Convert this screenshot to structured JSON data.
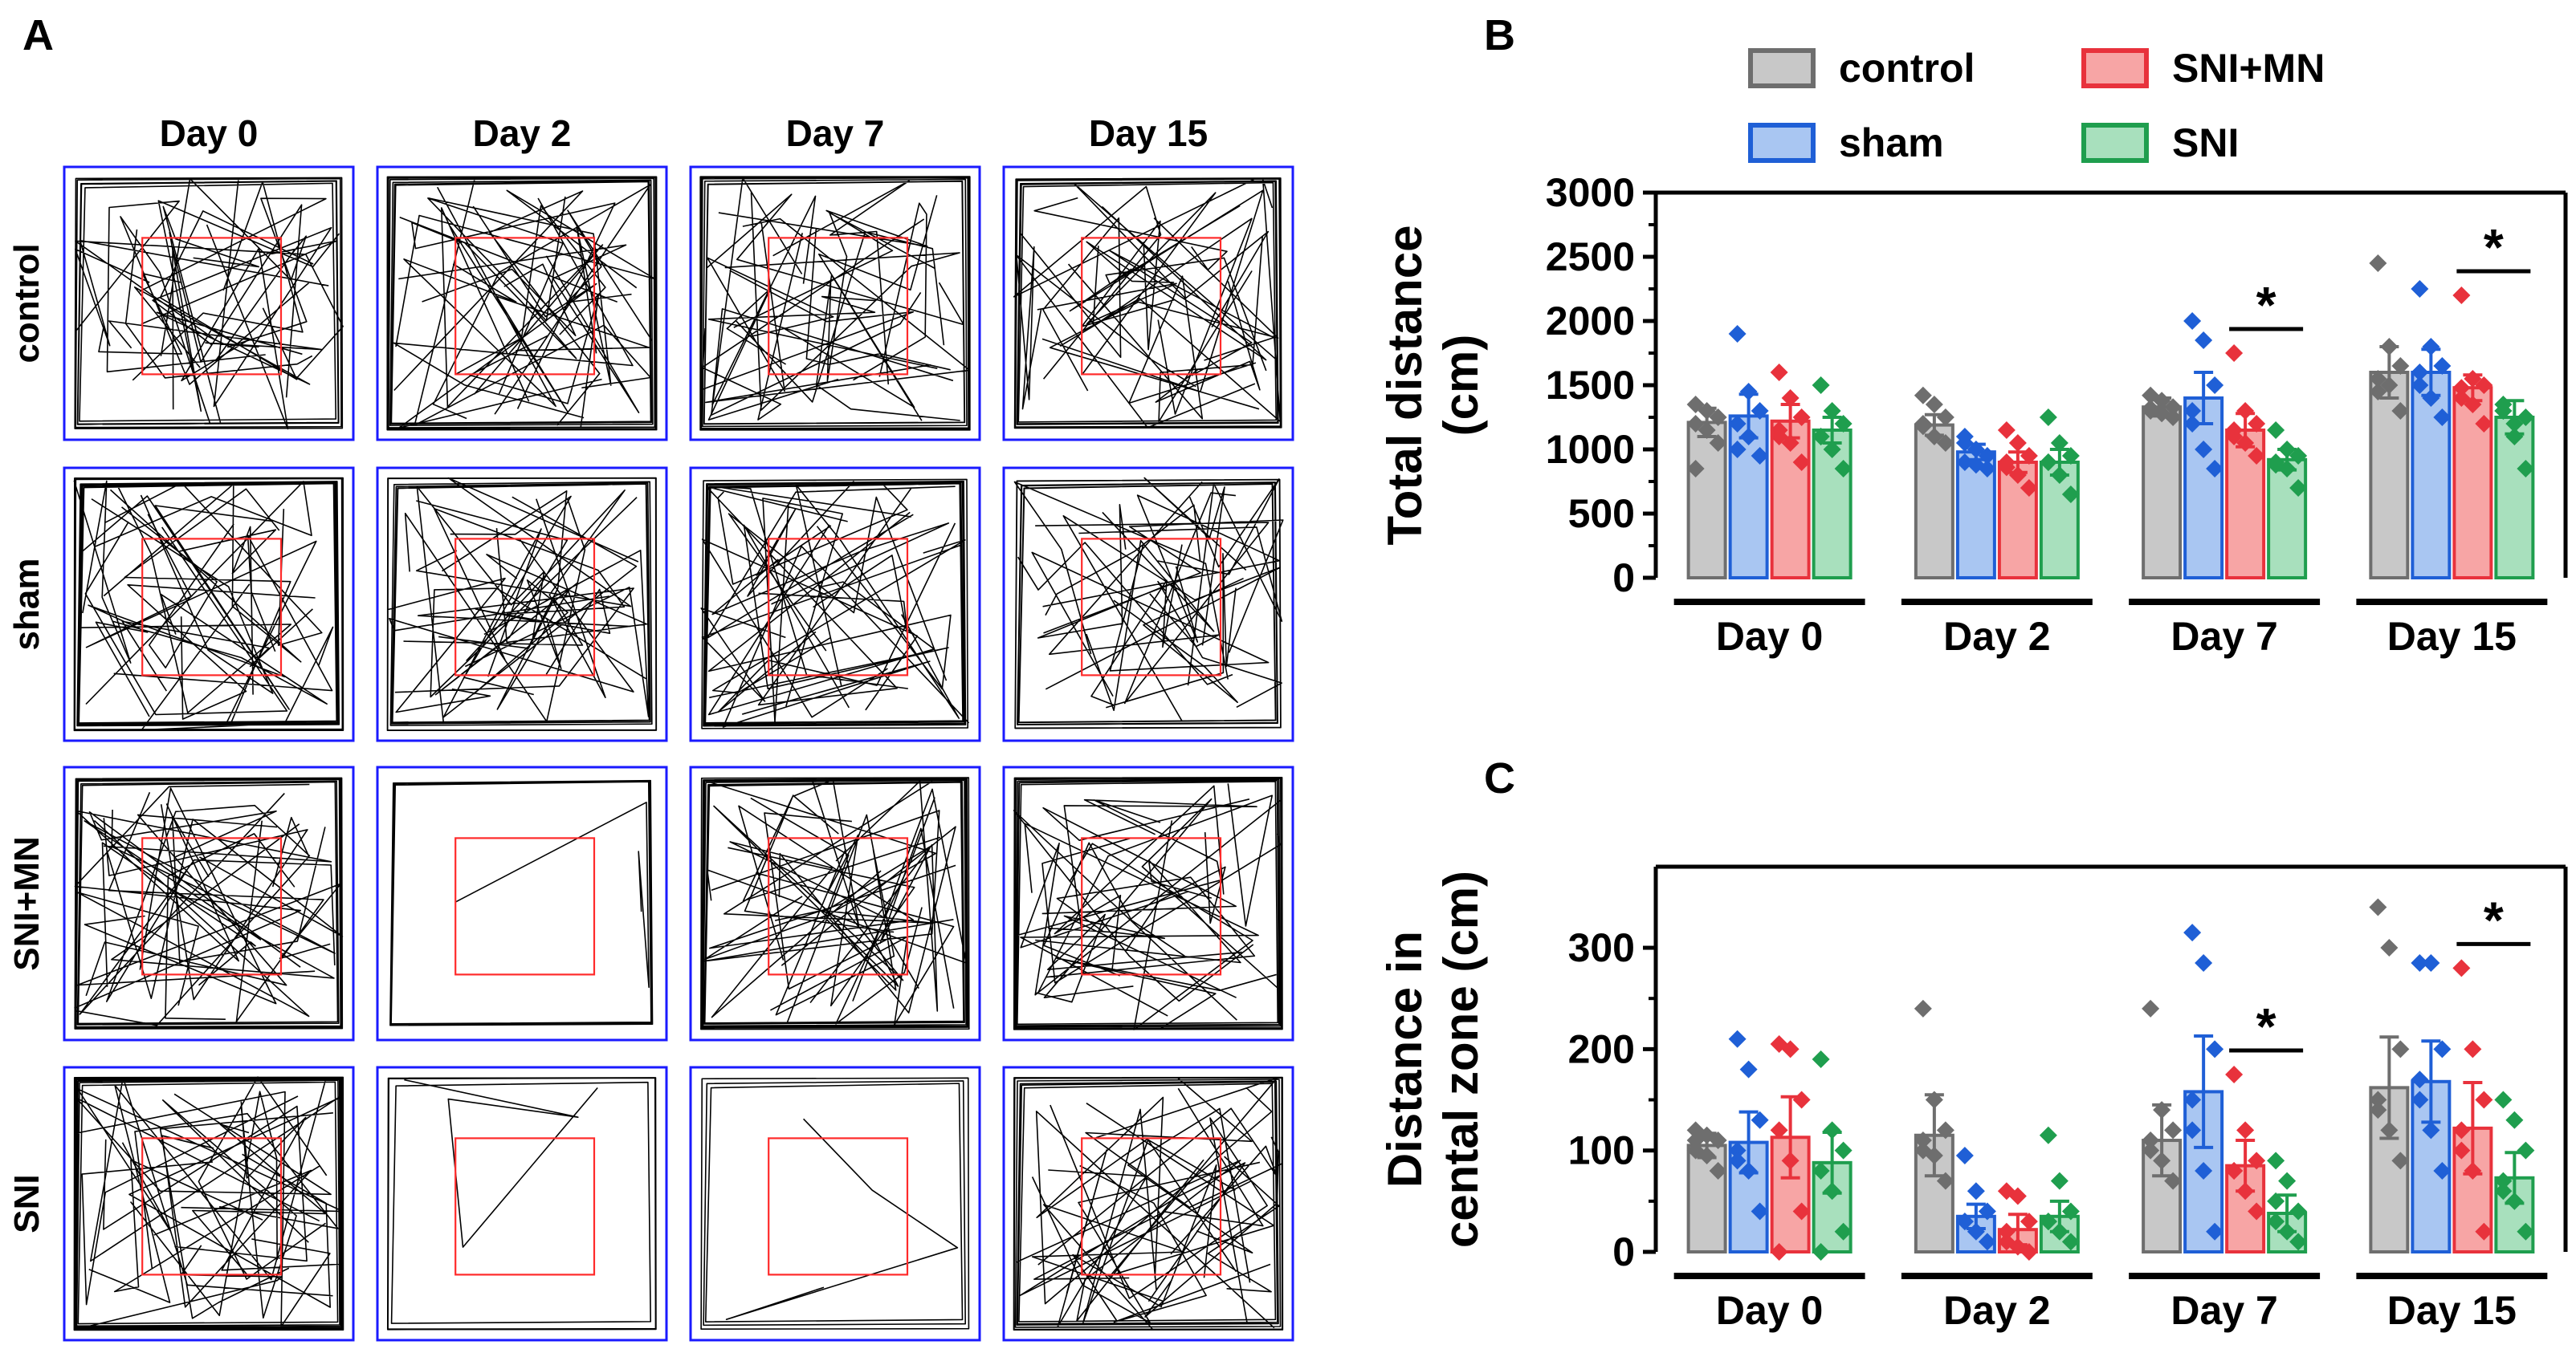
{
  "panels": {
    "a_letter": "A",
    "b_letter": "B",
    "c_letter": "C"
  },
  "panel_a": {
    "day_labels": [
      "Day 0",
      "Day 2",
      "Day 7",
      "Day 15"
    ],
    "group_labels": [
      "control",
      "sham",
      "SNI+MN",
      "SNI"
    ],
    "track_color": "#000000",
    "arena_border_color": "#1a1aff",
    "center_zone_color": "#ff2a2a"
  },
  "legend": {
    "items": [
      "control",
      "sham",
      "SNI+MN",
      "SNI"
    ]
  },
  "colors": {
    "control": {
      "fill": "#c8c8c8",
      "stroke": "#6e6e6e"
    },
    "sham": {
      "fill": "#a9c6f2",
      "stroke": "#1f5fd6"
    },
    "SNI+MN": {
      "fill": "#f7a5a5",
      "stroke": "#e8323c"
    },
    "SNI": {
      "fill": "#a8e0bd",
      "stroke": "#1f9e4e"
    }
  },
  "chart_data": [
    {
      "panel": "B",
      "type": "bar",
      "ylabel_line1": "Total distance",
      "ylabel_line2": "(cm)",
      "ylim": [
        0,
        3000
      ],
      "yticks": [
        "0",
        "500",
        "1000",
        "1500",
        "2000",
        "2500",
        "3000"
      ],
      "categories": [
        "Day 0",
        "Day 2",
        "Day 7",
        "Day 15"
      ],
      "series": [
        {
          "name": "control",
          "values": [
            1210,
            1190,
            1330,
            1600
          ],
          "sem": [
            110,
            80,
            70,
            200
          ],
          "points": [
            [
              1350,
              1300,
              1250,
              1200,
              1150,
              1050,
              850
            ],
            [
              1420,
              1350,
              1250,
              1200,
              1100,
              1050,
              1180
            ],
            [
              1420,
              1380,
              1330,
              1300,
              1280,
              1250,
              1320
            ],
            [
              2450,
              1800,
              1650,
              1550,
              1500,
              1300,
              1450
            ]
          ]
        },
        {
          "name": "sham",
          "values": [
            1260,
            980,
            1400,
            1600
          ],
          "sem": [
            170,
            60,
            200,
            180
          ],
          "points": [
            [
              1900,
              1450,
              1300,
              1200,
              1100,
              950,
              1000
            ],
            [
              1100,
              1000,
              950,
              900,
              880,
              850,
              1050
            ],
            [
              2000,
              1850,
              1500,
              1300,
              1000,
              850,
              1200
            ],
            [
              2250,
              1800,
              1650,
              1500,
              1400,
              1250,
              1600
            ]
          ]
        },
        {
          "name": "SNI+MN",
          "values": [
            1220,
            900,
            1150,
            1480
          ],
          "sem": [
            130,
            80,
            130,
            100
          ],
          "points": [
            [
              1600,
              1400,
              1250,
              1150,
              1050,
              900,
              1100
            ],
            [
              1150,
              1050,
              950,
              900,
              800,
              700,
              860
            ],
            [
              1750,
              1300,
              1200,
              1100,
              1050,
              950,
              1150
            ],
            [
              2200,
              1550,
              1500,
              1400,
              1350,
              1200,
              1480
            ]
          ]
        },
        {
          "name": "SNI",
          "values": [
            1150,
            900,
            920,
            1250
          ],
          "sem": [
            100,
            100,
            80,
            130
          ],
          "points": [
            [
              1500,
              1300,
              1200,
              1100,
              1000,
              850,
              1100
            ],
            [
              1250,
              1050,
              950,
              900,
              800,
              650,
              900
            ],
            [
              1150,
              1000,
              950,
              900,
              850,
              700,
              880
            ],
            [
              1300,
              1200,
              1250,
              1350,
              1100,
              850,
              1300
            ]
          ]
        }
      ],
      "significance": [
        {
          "category": "Day 7",
          "label": "*"
        },
        {
          "category": "Day 15",
          "label": "*"
        }
      ]
    },
    {
      "panel": "C",
      "type": "bar",
      "ylabel_line1": "Distance in",
      "ylabel_line2": "cental zone (cm)",
      "ylim": [
        0,
        380
      ],
      "yticks": [
        "0",
        "100",
        "200",
        "300"
      ],
      "categories": [
        "Day 0",
        "Day 2",
        "Day 7",
        "Day 15"
      ],
      "series": [
        {
          "name": "control",
          "values": [
            105,
            115,
            110,
            162
          ],
          "sem": [
            12,
            40,
            35,
            50
          ],
          "points": [
            [
              120,
              115,
              110,
              100,
              95,
              80,
              110
            ],
            [
              240,
              150,
              120,
              100,
              95,
              70,
              110
            ],
            [
              240,
              140,
              120,
              110,
              90,
              70,
              100
            ],
            [
              340,
              300,
              200,
              150,
              120,
              90,
              140
            ]
          ]
        },
        {
          "name": "sham",
          "values": [
            108,
            35,
            158,
            168
          ],
          "sem": [
            30,
            12,
            55,
            40
          ],
          "points": [
            [
              210,
              180,
              130,
              100,
              80,
              40,
              90
            ],
            [
              95,
              60,
              40,
              30,
              20,
              10,
              30
            ],
            [
              315,
              285,
              200,
              150,
              80,
              20,
              120
            ],
            [
              285,
              285,
              200,
              150,
              120,
              80,
              170
            ]
          ]
        },
        {
          "name": "SNI+MN",
          "values": [
            113,
            22,
            85,
            122
          ],
          "sem": [
            40,
            15,
            25,
            45
          ],
          "points": [
            [
              205,
              200,
              150,
              120,
              90,
              40,
              0
            ],
            [
              60,
              55,
              30,
              10,
              5,
              0,
              20
            ],
            [
              175,
              120,
              90,
              80,
              60,
              40,
              80
            ],
            [
              280,
              200,
              150,
              120,
              80,
              20,
              100
            ]
          ]
        },
        {
          "name": "SNI",
          "values": [
            88,
            35,
            38,
            73
          ],
          "sem": [
            30,
            15,
            18,
            25
          ],
          "points": [
            [
              190,
              120,
              100,
              80,
              60,
              20,
              0
            ],
            [
              115,
              70,
              40,
              30,
              20,
              10,
              30
            ],
            [
              90,
              70,
              40,
              30,
              20,
              10,
              50
            ],
            [
              150,
              130,
              100,
              60,
              50,
              20,
              70
            ]
          ]
        }
      ],
      "significance": [
        {
          "category": "Day 7",
          "label": "*"
        },
        {
          "category": "Day 15",
          "label": "*"
        }
      ]
    }
  ]
}
